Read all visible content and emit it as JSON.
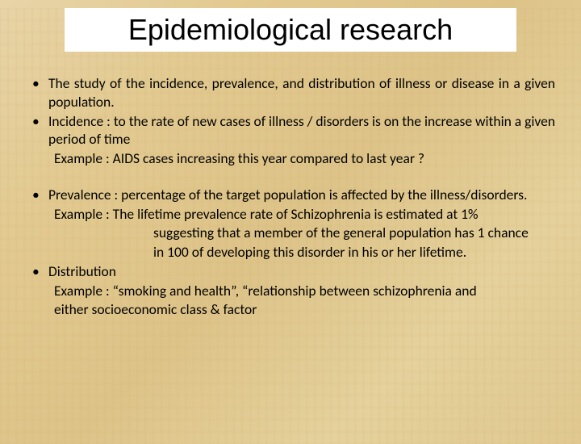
{
  "slide": {
    "title": "Epidemiological research",
    "colors": {
      "background_base": "#e2ca92",
      "title_bg": "#ffffff",
      "text": "#000000"
    },
    "typography": {
      "title_fontsize": 36,
      "body_fontsize": 17.5,
      "title_font": "Arial",
      "body_font": "Calibri"
    },
    "group1": {
      "b1": "The study of the incidence, prevalence, and distribution of illness or disease in a given population.",
      "b2": "Incidence : to the rate of new cases of illness / disorders is on the increase within a given period of time",
      "ex1": "Example :   AIDS cases increasing this year compared to last year ?"
    },
    "group2": {
      "b1": "Prevalence : percentage of the target population is affected by the illness/disorders.",
      "ex1a": "Example :        The lifetime prevalence rate of Schizophrenia is estimated at 1%",
      "ex1b": "suggesting that a member of the general population has 1 chance",
      "ex1c": "in 100 of developing this disorder in his or her lifetime.",
      "b2": "Distribution",
      "ex2a": "Example :  “smoking and health”, “relationship between schizophrenia and",
      "ex2b": "either socioeconomic class & factor"
    }
  }
}
